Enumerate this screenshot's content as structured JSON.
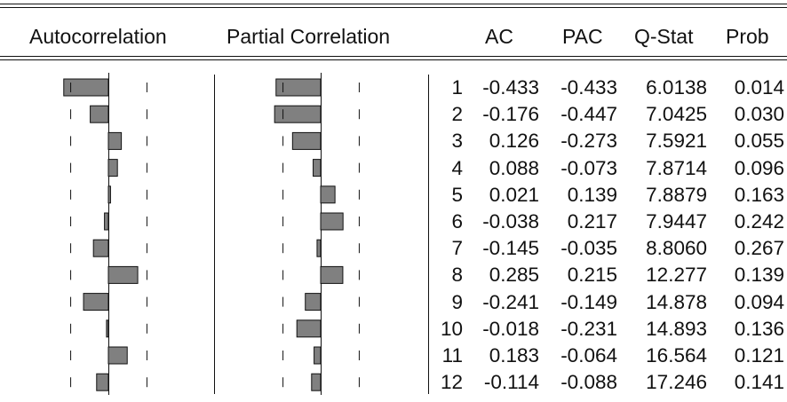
{
  "header": {
    "autocorrelation": "Autocorrelation",
    "partial_correlation": "Partial Correlation",
    "ac": "AC",
    "pac": "PAC",
    "qstat": "Q-Stat",
    "prob": "Prob"
  },
  "chart_data": {
    "type": "table",
    "columns": [
      "AC",
      "PAC",
      "Q-Stat",
      "Prob"
    ],
    "rows": [
      {
        "lag": "1",
        "ac": "-0.433",
        "pac": "-0.433",
        "qstat": "6.0138",
        "prob": "0.014"
      },
      {
        "lag": "2",
        "ac": "-0.176",
        "pac": "-0.447",
        "qstat": "7.0425",
        "prob": "0.030"
      },
      {
        "lag": "3",
        "ac": "0.126",
        "pac": "-0.273",
        "qstat": "7.5921",
        "prob": "0.055"
      },
      {
        "lag": "4",
        "ac": "0.088",
        "pac": "-0.073",
        "qstat": "7.8714",
        "prob": "0.096"
      },
      {
        "lag": "5",
        "ac": "0.021",
        "pac": "0.139",
        "qstat": "7.8879",
        "prob": "0.163"
      },
      {
        "lag": "6",
        "ac": "-0.038",
        "pac": "0.217",
        "qstat": "7.9447",
        "prob": "0.242"
      },
      {
        "lag": "7",
        "ac": "-0.145",
        "pac": "-0.035",
        "qstat": "8.8060",
        "prob": "0.267"
      },
      {
        "lag": "8",
        "ac": "0.285",
        "pac": "0.215",
        "qstat": "12.277",
        "prob": "0.139"
      },
      {
        "lag": "9",
        "ac": "-0.241",
        "pac": "-0.149",
        "qstat": "14.878",
        "prob": "0.094"
      },
      {
        "lag": "10",
        "ac": "-0.018",
        "pac": "-0.231",
        "qstat": "14.893",
        "prob": "0.136"
      },
      {
        "lag": "11",
        "ac": "0.183",
        "pac": "-0.064",
        "qstat": "16.564",
        "prob": "0.121"
      },
      {
        "lag": "12",
        "ac": "-0.114",
        "pac": "-0.088",
        "qstat": "17.246",
        "prob": "0.141"
      }
    ],
    "confidence_bound": 0.37,
    "bar_color": "#808080",
    "bar_outline": "#111111"
  }
}
